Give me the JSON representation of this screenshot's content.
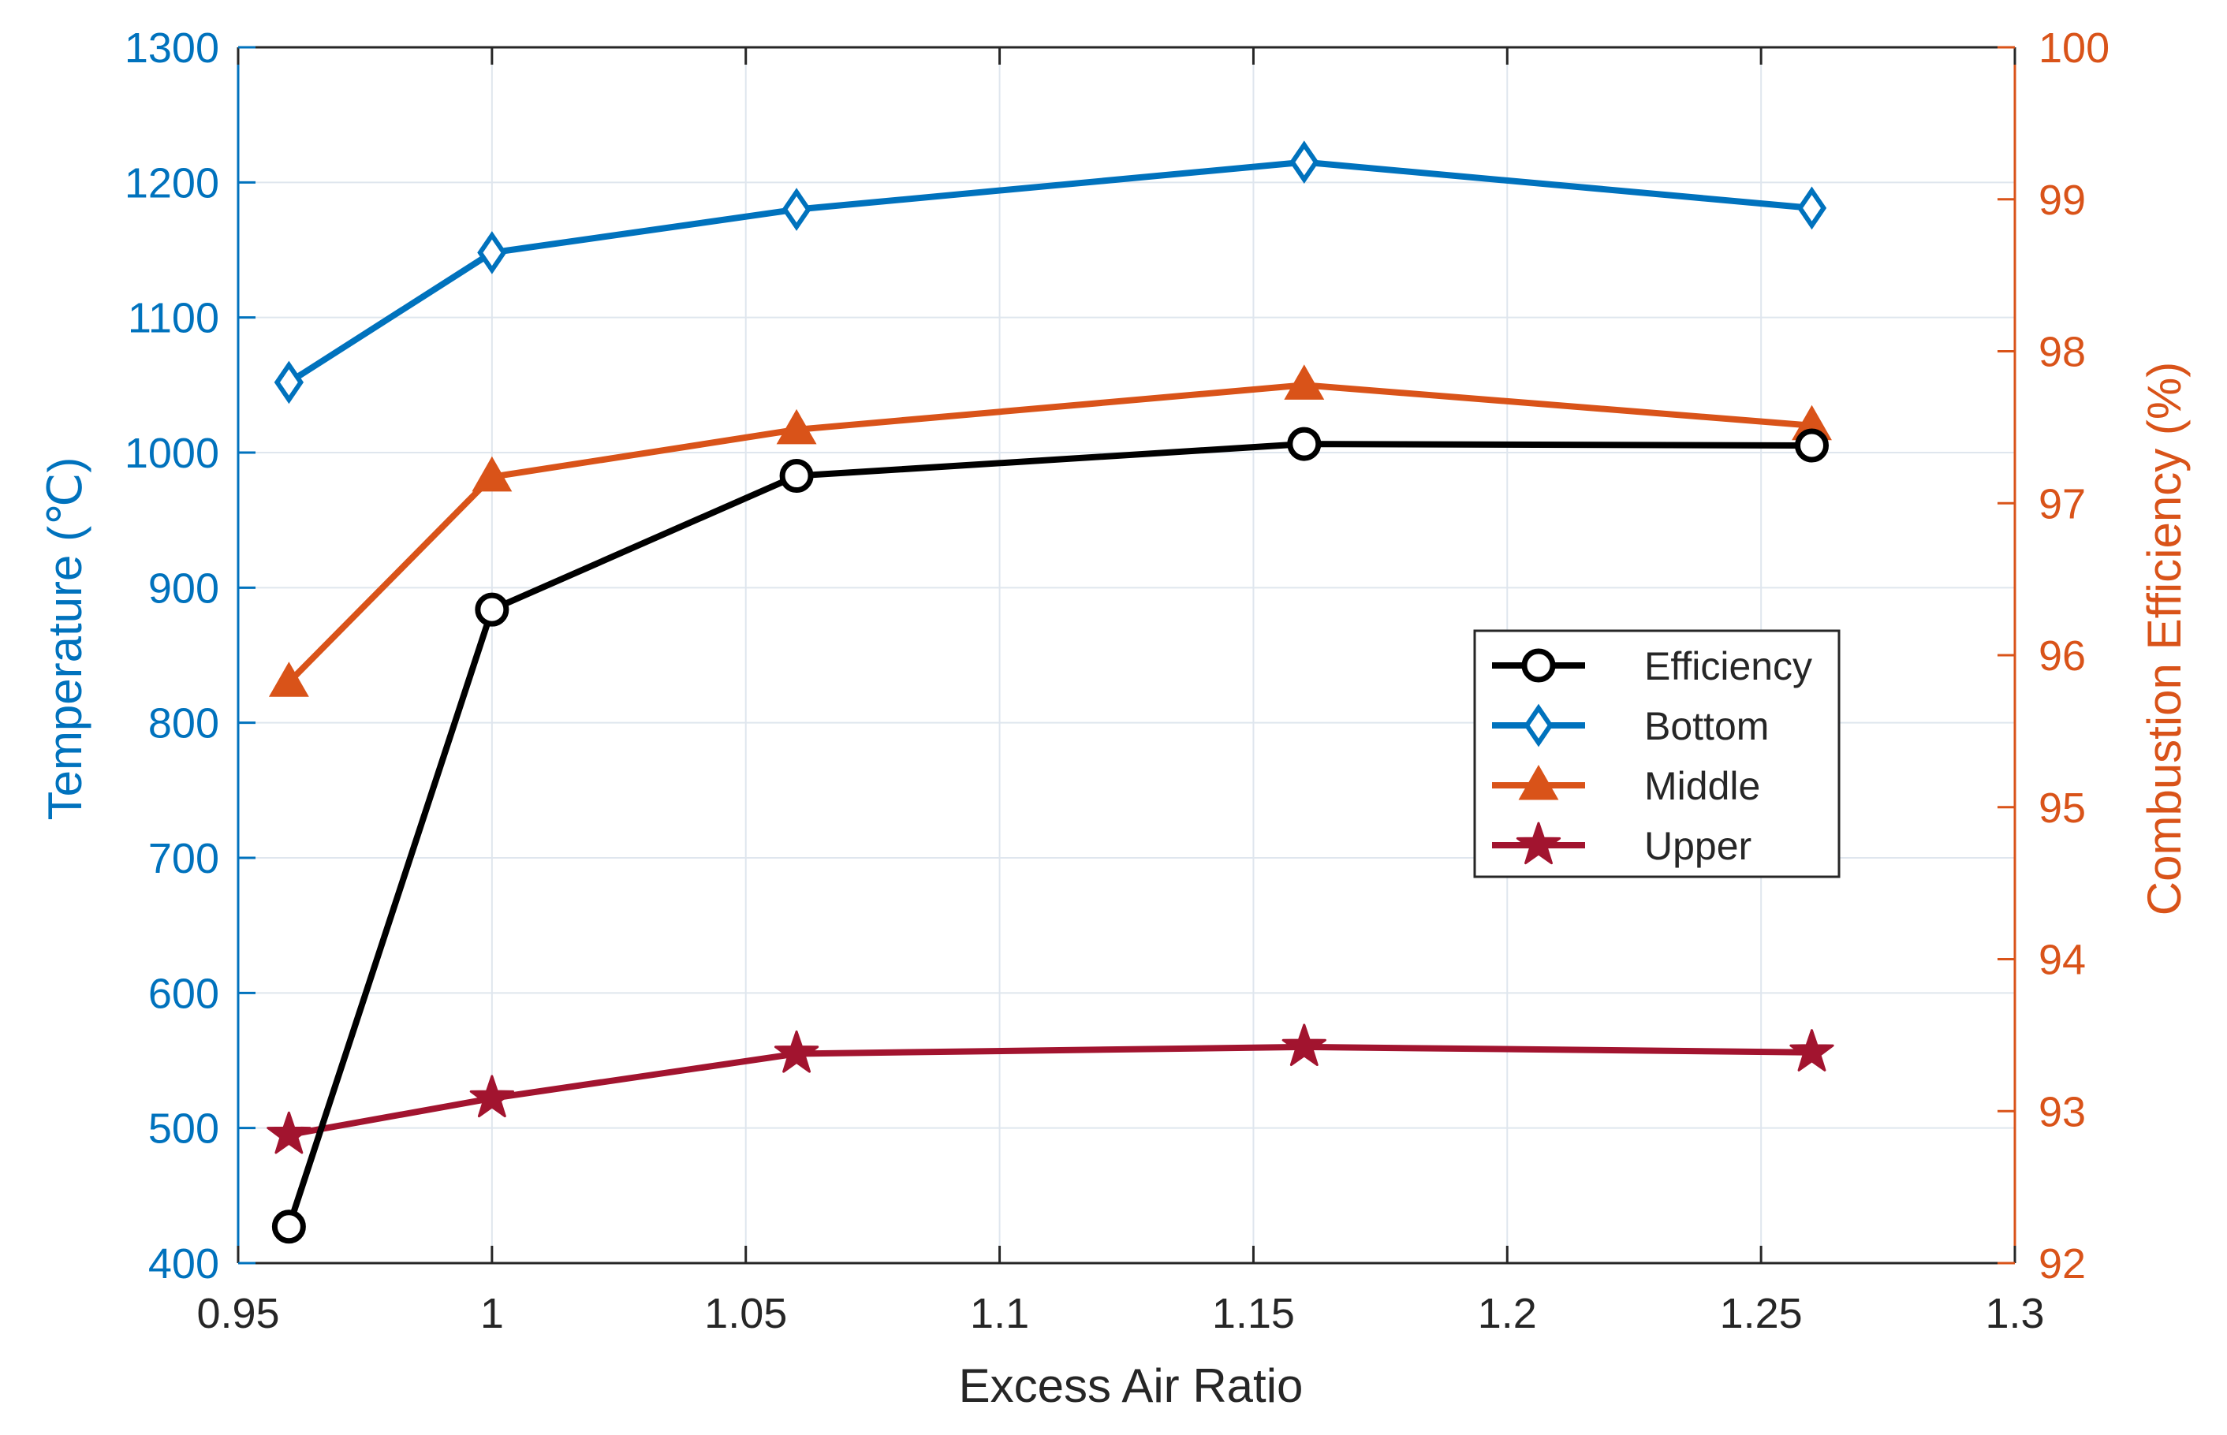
{
  "chart_data": {
    "type": "line",
    "title": "",
    "xlabel": "Excess Air Ratio",
    "ylabel_left": "Temperature (℃)",
    "ylabel_right": "Combustion Efficiency (%)",
    "xlim": [
      0.95,
      1.3
    ],
    "ylim_left": [
      400,
      1300
    ],
    "ylim_right": [
      92,
      100
    ],
    "x_ticks": [
      0.95,
      1.0,
      1.05,
      1.1,
      1.15,
      1.2,
      1.25,
      1.3
    ],
    "x_tick_labels": [
      "0.95",
      "1",
      "1.05",
      "1.1",
      "1.15",
      "1.2",
      "1.25",
      "1.3"
    ],
    "y_left_ticks": [
      400,
      500,
      600,
      700,
      800,
      900,
      1000,
      1100,
      1200,
      1300
    ],
    "y_left_tick_labels": [
      "400",
      "500",
      "600",
      "700",
      "800",
      "900",
      "1000",
      "1100",
      "1200",
      "1300"
    ],
    "y_right_ticks": [
      92,
      93,
      94,
      95,
      96,
      97,
      98,
      99,
      100
    ],
    "y_right_tick_labels": [
      "92",
      "93",
      "94",
      "95",
      "96",
      "97",
      "98",
      "99",
      "100"
    ],
    "grid": true,
    "legend_position": "center-right",
    "x": [
      0.96,
      1.0,
      1.06,
      1.16,
      1.26
    ],
    "series": [
      {
        "name": "Efficiency",
        "axis": "right",
        "marker": "circle",
        "color": "#000000",
        "values": [
          92.24,
          96.3,
          97.18,
          97.39,
          97.38
        ]
      },
      {
        "name": "Bottom",
        "axis": "left",
        "marker": "diamond",
        "color": "#0072BD",
        "values": [
          1052,
          1148,
          1180,
          1215,
          1181
        ]
      },
      {
        "name": "Middle",
        "axis": "left",
        "marker": "triangle",
        "color": "#D95319",
        "values": [
          830,
          982,
          1017,
          1050,
          1020
        ]
      },
      {
        "name": "Upper",
        "axis": "left",
        "marker": "star",
        "color": "#A2142F",
        "values": [
          495,
          522,
          555,
          560,
          556
        ]
      }
    ],
    "colors": {
      "left_axis": "#0072BD",
      "right_axis": "#D95319",
      "x_axis": "#262626",
      "grid": "#dfe6ee"
    }
  }
}
